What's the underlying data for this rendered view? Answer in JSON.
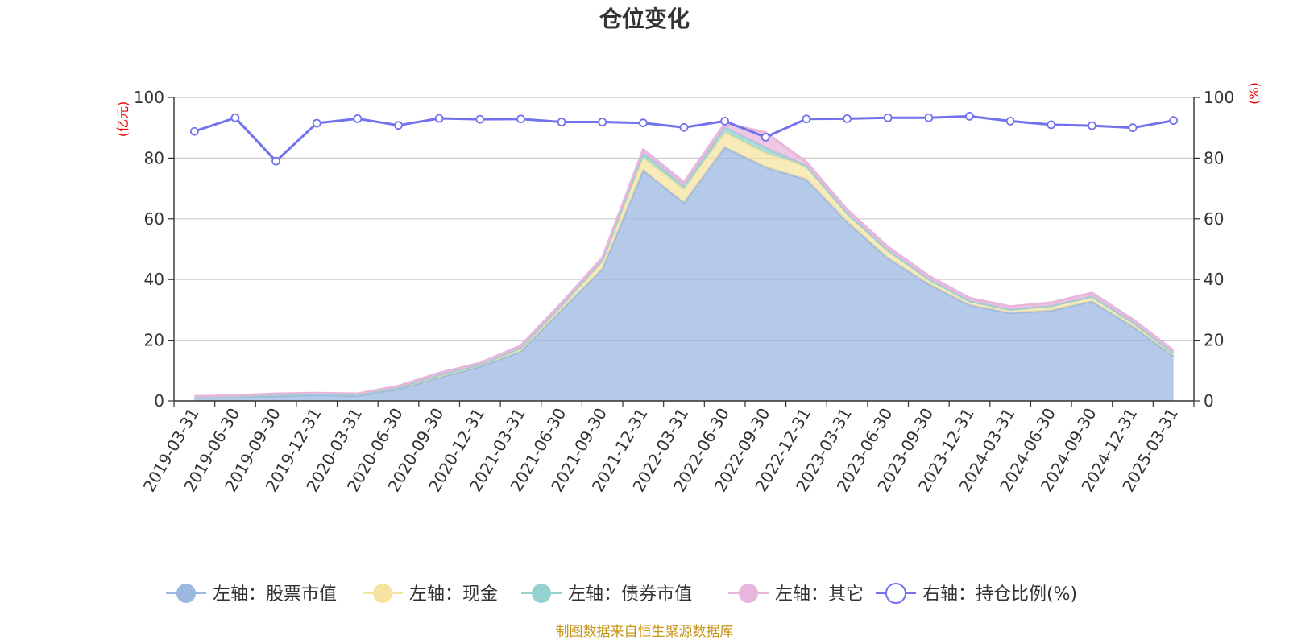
{
  "chart_data": {
    "type": "area",
    "title": "仓位变化",
    "left_axis": {
      "unit": "(亿元)",
      "ylim": [
        0,
        100
      ],
      "ticks": [
        0,
        20,
        40,
        60,
        80,
        100
      ]
    },
    "right_axis": {
      "unit": "(%)",
      "ylim": [
        0,
        100
      ],
      "ticks": [
        0,
        20,
        40,
        60,
        80,
        100
      ]
    },
    "grid": true,
    "legend_position": "bottom",
    "categories": [
      "2019-03-31",
      "2019-06-30",
      "2019-09-30",
      "2019-12-31",
      "2020-03-31",
      "2020-06-30",
      "2020-09-30",
      "2020-12-31",
      "2021-03-31",
      "2021-06-30",
      "2021-09-30",
      "2021-12-31",
      "2022-03-31",
      "2022-06-30",
      "2022-09-30",
      "2022-12-31",
      "2023-03-31",
      "2023-06-30",
      "2023-09-30",
      "2023-12-31",
      "2024-03-31",
      "2024-06-30",
      "2024-09-30",
      "2024-12-31",
      "2025-03-31"
    ],
    "series": [
      {
        "name": "左轴：股票市值",
        "axis": "left",
        "kind": "stacked-area",
        "color": "#9cb7e0",
        "values": [
          1.1,
          1.5,
          1.6,
          2.0,
          1.7,
          3.9,
          7.8,
          11.3,
          16.3,
          30.0,
          43.5,
          76.0,
          65.3,
          83.6,
          77.0,
          73.0,
          59.0,
          47.0,
          38.5,
          31.6,
          29.0,
          29.8,
          32.8,
          24.5,
          14.8
        ]
      },
      {
        "name": "左轴：现金",
        "axis": "left",
        "kind": "stacked-area",
        "color": "#f6e3a1",
        "values": [
          0.2,
          0.1,
          0.5,
          0.3,
          0.4,
          0.5,
          0.8,
          0.6,
          1.2,
          1.5,
          2.8,
          4.2,
          4.5,
          4.9,
          4.7,
          4.4,
          2.8,
          2.6,
          1.6,
          1.3,
          1.1,
          1.5,
          1.6,
          1.4,
          1.0
        ]
      },
      {
        "name": "左轴：债券市值",
        "axis": "left",
        "kind": "stacked-area",
        "color": "#94d2d1",
        "values": [
          0,
          0,
          0,
          0,
          0,
          0,
          0,
          0,
          0,
          0,
          0,
          1.5,
          1.0,
          1.6,
          1.8,
          0,
          0,
          0,
          0,
          0,
          0,
          0,
          0,
          0,
          0
        ]
      },
      {
        "name": "左轴：其它",
        "axis": "left",
        "kind": "stacked-area",
        "color": "#e8b6dc",
        "values": [
          0.2,
          0.2,
          0.3,
          0.3,
          0.3,
          0.5,
          0.6,
          0.6,
          0.7,
          0.8,
          0.9,
          1.2,
          1.2,
          1.3,
          5.0,
          1.3,
          1.2,
          1.2,
          1.1,
          1.0,
          1.0,
          1.1,
          1.2,
          1.0,
          0.8
        ]
      },
      {
        "name": "右轴：持仓比例(%)",
        "axis": "right",
        "kind": "line",
        "color": "#7272ee",
        "values": [
          88.8,
          93.3,
          79.0,
          91.5,
          93.0,
          90.8,
          93.1,
          92.8,
          92.9,
          91.9,
          91.9,
          91.6,
          90.1,
          92.2,
          86.9,
          92.9,
          93.0,
          93.3,
          93.3,
          93.8,
          92.2,
          91.0,
          90.7,
          90.0,
          92.4
        ]
      }
    ]
  },
  "footer": {
    "source": "制图数据来自恒生聚源数据库"
  }
}
